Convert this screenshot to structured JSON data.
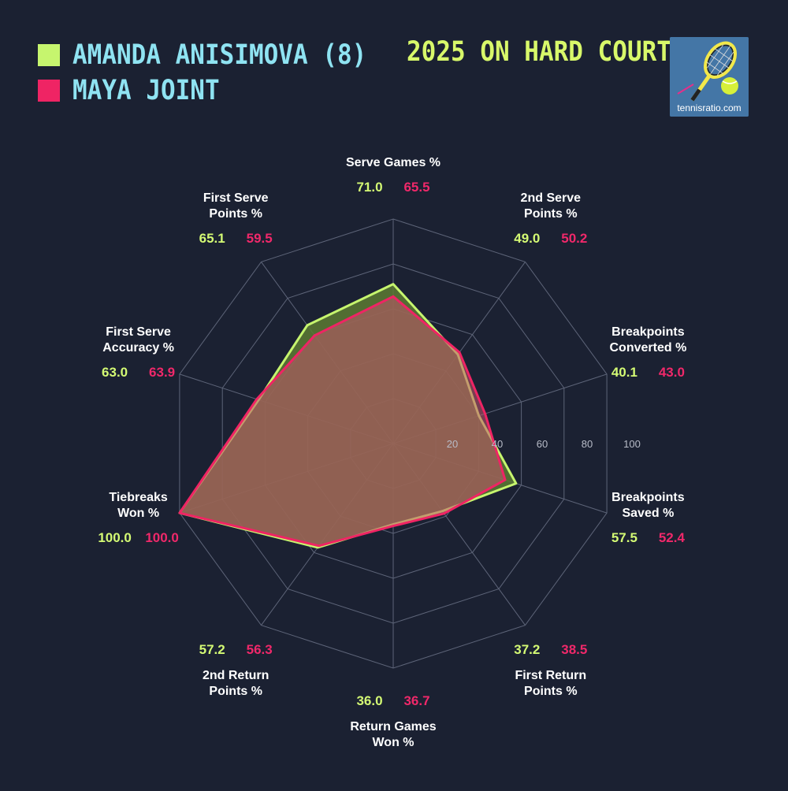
{
  "legend": [
    {
      "name": "AMANDA ANISIMOVA (8)",
      "color": "#c6f56e"
    },
    {
      "name": "MAYA JOINT",
      "color": "#ef2464"
    }
  ],
  "title": "2025 ON HARD COURTS",
  "logo": {
    "text": "tennisratio.com",
    "icon": "tennis-racket-ball-icon"
  },
  "chart_data": {
    "type": "radar",
    "rmin": 0,
    "rmax": 100,
    "ticks": [
      "20",
      "40",
      "60",
      "80",
      "100"
    ],
    "tick_values": [
      20,
      40,
      60,
      80,
      100
    ],
    "categories": [
      {
        "line1": "Serve Games %",
        "line2": ""
      },
      {
        "line1": "2nd Serve",
        "line2": "Points %"
      },
      {
        "line1": "Breakpoints",
        "line2": "Converted %"
      },
      {
        "line1": "Breakpoints",
        "line2": "Saved %"
      },
      {
        "line1": "First Return",
        "line2": "Points %"
      },
      {
        "line1": "Return Games",
        "line2": "Won %"
      },
      {
        "line1": "2nd Return",
        "line2": "Points %"
      },
      {
        "line1": "Tiebreaks",
        "line2": "Won %"
      },
      {
        "line1": "First Serve",
        "line2": "Accuracy %"
      },
      {
        "line1": "First Serve",
        "line2": "Points %"
      }
    ],
    "series": [
      {
        "name": "AMANDA ANISIMOVA (8)",
        "color": "#c6f56e",
        "values": [
          71.0,
          49.0,
          40.1,
          57.5,
          37.2,
          36.0,
          57.2,
          100.0,
          63.0,
          65.1
        ],
        "labels": [
          "71.0",
          "49.0",
          "40.1",
          "57.5",
          "37.2",
          "36.0",
          "57.2",
          "100.0",
          "63.0",
          "65.1"
        ]
      },
      {
        "name": "MAYA JOINT",
        "color": "#ef2464",
        "values": [
          65.5,
          50.2,
          43.0,
          52.4,
          38.5,
          36.7,
          56.3,
          100.0,
          63.9,
          59.5
        ],
        "labels": [
          "65.5",
          "50.2",
          "43.0",
          "52.4",
          "38.5",
          "36.7",
          "56.3",
          "100.0",
          "63.9",
          "59.5"
        ]
      }
    ]
  }
}
